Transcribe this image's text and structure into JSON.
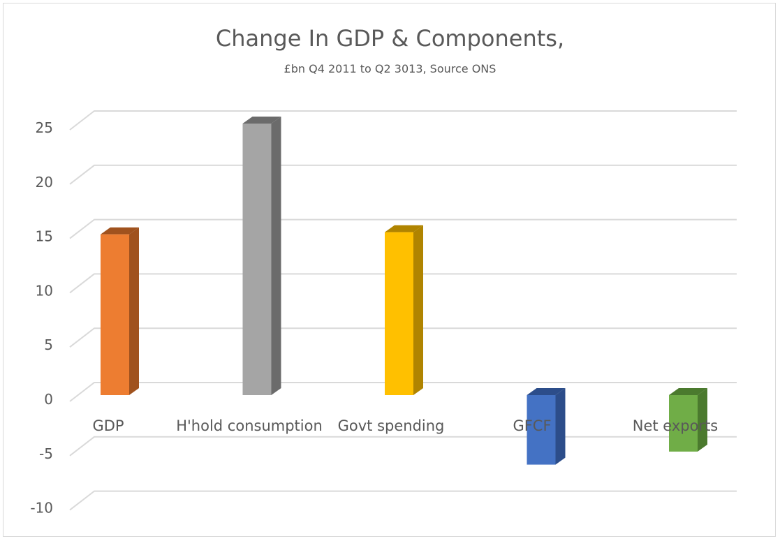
{
  "chart_data": {
    "type": "bar",
    "title": "Change In GDP & Components,",
    "subtitle": "£bn Q4 2011 to Q2 3013, Source ONS",
    "categories": [
      "GDP",
      "H'hold consumption",
      "Govt spending",
      "GFCF",
      "Net exports"
    ],
    "values": [
      14.8,
      25.0,
      15.0,
      -6.4,
      -5.2
    ],
    "colors": [
      "#ed7d31",
      "#a5a5a5",
      "#ffc000",
      "#4472c4",
      "#70ad47"
    ],
    "side_colors": [
      "#a0521e",
      "#6b6b6b",
      "#b08400",
      "#2c4d8a",
      "#4b7a2e"
    ],
    "yticks": [
      25,
      20,
      15,
      10,
      5,
      0,
      -5,
      -10
    ],
    "ylim": [
      -10,
      25
    ],
    "grid": true,
    "xlabel": "",
    "ylabel": ""
  }
}
